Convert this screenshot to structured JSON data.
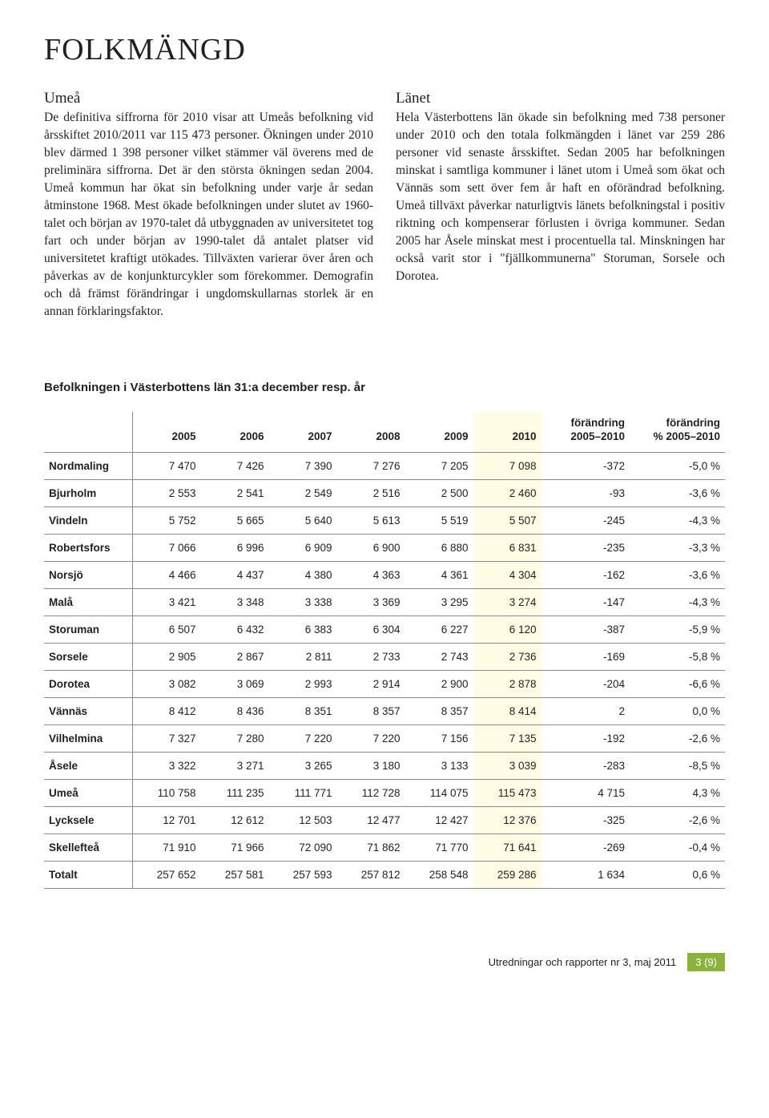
{
  "title": "FOLKMÄNGD",
  "left": {
    "heading": "Umeå",
    "body": "De definitiva siffrorna för 2010 visar att Umeås befolkning vid årsskiftet 2010/2011 var 115 473 personer. Ökningen under 2010 blev därmed 1 398 personer vilket stämmer väl överens med de preliminära siffrorna. Det är den största ökningen sedan 2004. Umeå kommun har ökat sin befolkning under varje år sedan åtminstone 1968. Mest ökade befolkningen under slutet av 1960-talet och början av 1970-talet då utbyggnaden av universitetet tog fart och under början av 1990-talet då antalet platser vid universitetet kraftigt utökades. Tillväxten varierar över åren och påverkas av de konjunkturcykler som förekommer. Demografin och då främst förändringar i ungdomskullarnas storlek är en annan förklaringsfaktor."
  },
  "right": {
    "heading": "Länet",
    "body": "Hela Västerbottens län ökade sin befolkning med 738 personer under 2010 och den totala folkmängden i länet var 259 286 personer vid senaste årsskiftet. Sedan 2005 har befolkningen minskat i samtliga kommuner i länet utom i Umeå som ökat och Vännäs som sett över fem år haft en oförändrad befolkning. Umeå tillväxt påverkar naturligtvis länets befolkningstal i positiv riktning och kompenserar förlusten i övriga kommuner. Sedan 2005 har Åsele minskat mest i procentuella tal. Minskningen har också varit stor i \"fjällkommunerna\" Storuman, Sorsele och Dorotea."
  },
  "table": {
    "caption": "Befolkningen i Västerbottens län 31:a december resp. år",
    "headers": [
      "",
      "2005",
      "2006",
      "2007",
      "2008",
      "2009",
      "2010",
      "förändring\n2005–2010",
      "förändring\n% 2005–2010"
    ],
    "highlight_col_index": 6,
    "rows": [
      [
        "Nordmaling",
        "7 470",
        "7 426",
        "7 390",
        "7 276",
        "7 205",
        "7 098",
        "-372",
        "-5,0 %"
      ],
      [
        "Bjurholm",
        "2 553",
        "2 541",
        "2 549",
        "2 516",
        "2 500",
        "2 460",
        "-93",
        "-3,6 %"
      ],
      [
        "Vindeln",
        "5 752",
        "5 665",
        "5 640",
        "5 613",
        "5 519",
        "5 507",
        "-245",
        "-4,3 %"
      ],
      [
        "Robertsfors",
        "7 066",
        "6 996",
        "6 909",
        "6 900",
        "6 880",
        "6 831",
        "-235",
        "-3,3 %"
      ],
      [
        "Norsjö",
        "4 466",
        "4 437",
        "4 380",
        "4 363",
        "4 361",
        "4 304",
        "-162",
        "-3,6 %"
      ],
      [
        "Malå",
        "3 421",
        "3 348",
        "3 338",
        "3 369",
        "3 295",
        "3 274",
        "-147",
        "-4,3 %"
      ],
      [
        "Storuman",
        "6 507",
        "6 432",
        "6 383",
        "6 304",
        "6 227",
        "6 120",
        "-387",
        "-5,9 %"
      ],
      [
        "Sorsele",
        "2 905",
        "2 867",
        "2 811",
        "2 733",
        "2 743",
        "2 736",
        "-169",
        "-5,8 %"
      ],
      [
        "Dorotea",
        "3 082",
        "3 069",
        "2 993",
        "2 914",
        "2 900",
        "2 878",
        "-204",
        "-6,6 %"
      ],
      [
        "Vännäs",
        "8 412",
        "8 436",
        "8 351",
        "8 357",
        "8 357",
        "8 414",
        "2",
        "0,0 %"
      ],
      [
        "Vilhelmina",
        "7 327",
        "7 280",
        "7 220",
        "7 220",
        "7 156",
        "7 135",
        "-192",
        "-2,6 %"
      ],
      [
        "Åsele",
        "3 322",
        "3 271",
        "3 265",
        "3 180",
        "3 133",
        "3 039",
        "-283",
        "-8,5 %"
      ],
      [
        "Umeå",
        "110 758",
        "111 235",
        "111 771",
        "112 728",
        "114 075",
        "115 473",
        "4 715",
        "4,3 %"
      ],
      [
        "Lycksele",
        "12 701",
        "12 612",
        "12 503",
        "12 477",
        "12 427",
        "12 376",
        "-325",
        "-2,6 %"
      ],
      [
        "Skellefteå",
        "71 910",
        "71 966",
        "72 090",
        "71 862",
        "71 770",
        "71 641",
        "-269",
        "-0,4 %"
      ],
      [
        "Totalt",
        "257 652",
        "257 581",
        "257 593",
        "257 812",
        "258 548",
        "259 286",
        "1 634",
        "0,6 %"
      ]
    ],
    "col_widths": [
      "13%",
      "10%",
      "10%",
      "10%",
      "10%",
      "10%",
      "10%",
      "13%",
      "14%"
    ],
    "border_color": "#8a8a8a",
    "highlight_bg": "#fffce6"
  },
  "footer": {
    "text": "Utredningar och rapporter nr 3, maj 2011",
    "page": "3 (9)",
    "badge_bg": "#8bb33b"
  }
}
